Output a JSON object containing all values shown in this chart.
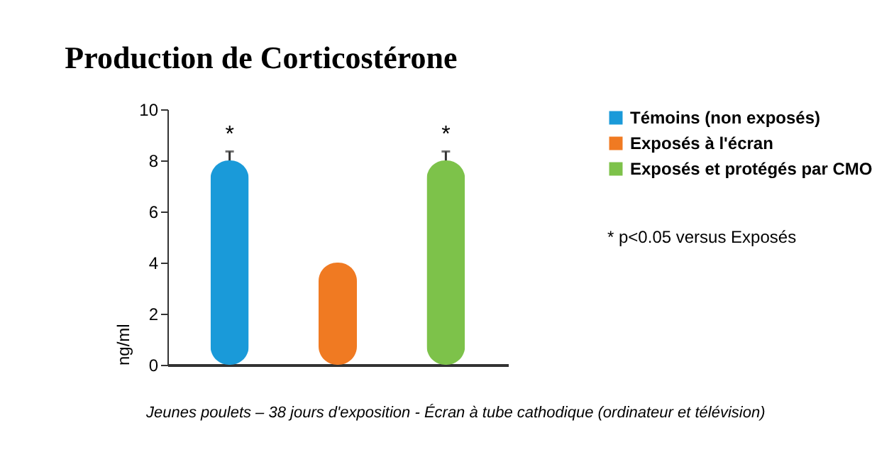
{
  "chart_data": {
    "type": "bar",
    "title": "Production de Corticostérone",
    "ylabel": "ng/ml",
    "categories": [
      null,
      null,
      null
    ],
    "series": [
      {
        "name": "Témoins (non exposés)",
        "color": "#1a9ad9",
        "values": [
          8.0,
          null,
          null
        ],
        "errors": [
          [
            8.0,
            8.35
          ],
          null,
          null
        ],
        "value_labels": [
          "*",
          null,
          null
        ]
      },
      {
        "name": "Exposés à l'écran",
        "color": "#f07a22",
        "values": [
          null,
          4.0,
          null
        ]
      },
      {
        "name": "Exposés et protégés par CMO",
        "color": "#7dc24a",
        "values": [
          null,
          null,
          8.0
        ],
        "errors": [
          null,
          null,
          [
            8.0,
            8.35
          ]
        ],
        "value_labels": [
          null,
          null,
          "*"
        ]
      }
    ],
    "ylim": [
      0,
      10
    ],
    "yticks": [
      0,
      2,
      4,
      6,
      8,
      10
    ],
    "grid": false,
    "legend": "top right",
    "tick_labels": "y",
    "annotations": [
      "* p<0.05 versus Exposés",
      "Jeunes poulets – 38 jours d'exposition -  Écran à tube cathodique (ordinateur et télévision)"
    ]
  }
}
